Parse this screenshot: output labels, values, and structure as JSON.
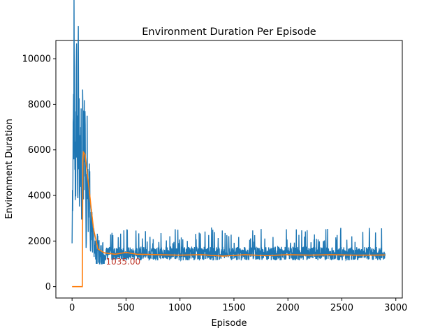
{
  "chart_data": {
    "type": "line",
    "title": "Environment Duration Per Episode",
    "xlabel": "Episode",
    "ylabel": "Environment Duration",
    "xlim": [
      -150,
      3060
    ],
    "ylim": [
      -500,
      10800
    ],
    "x_ticks": [
      0,
      500,
      1000,
      1500,
      2000,
      2500,
      3000
    ],
    "y_ticks": [
      0,
      2000,
      4000,
      6000,
      8000,
      10000
    ],
    "grid": false,
    "legend": "none",
    "colors": {
      "raw": "#1f77b4",
      "mean": "#ff7f0e",
      "annotation": "#c0392b"
    },
    "series": [
      {
        "x": [
          0,
          10,
          20,
          30,
          40,
          50,
          60,
          70,
          80,
          90,
          100,
          110,
          120,
          130,
          140,
          150,
          160,
          170,
          180,
          190,
          200,
          220,
          240,
          260,
          280,
          300,
          400,
          500,
          600,
          800,
          1000,
          1200,
          1400,
          1600,
          1800,
          2000,
          2200,
          2400,
          2600,
          2800,
          2900
        ],
        "y": [
          1900,
          7200,
          10200,
          3800,
          10300,
          5000,
          8800,
          3900,
          7000,
          3100,
          7900,
          5000,
          7700,
          1700,
          7500,
          2400,
          5400,
          1600,
          3400,
          1500,
          2500,
          1400,
          1700,
          1300,
          1500,
          1400,
          1450,
          1400,
          1350,
          1380,
          1370,
          1360,
          1340,
          1360,
          1350,
          1370,
          1350,
          1360,
          1340,
          1350,
          1350
        ],
        "band_low": 1150,
        "band_high": 1900
      },
      {
        "x": [
          0,
          95,
          100,
          105,
          120,
          140,
          160,
          180,
          200,
          240,
          300,
          400,
          500,
          600,
          800,
          1000,
          1200,
          1400,
          1600,
          1800,
          2000,
          2200,
          2400,
          2600,
          2800,
          2900
        ],
        "y": [
          0,
          0,
          5500,
          5900,
          5800,
          5000,
          4200,
          3300,
          2500,
          1650,
          1480,
          1420,
          1500,
          1420,
          1400,
          1380,
          1400,
          1340,
          1400,
          1360,
          1400,
          1380,
          1400,
          1380,
          1380,
          1390
        ]
      }
    ],
    "annotation": {
      "text": "1035.00",
      "x": 300,
      "y": 1120
    }
  }
}
